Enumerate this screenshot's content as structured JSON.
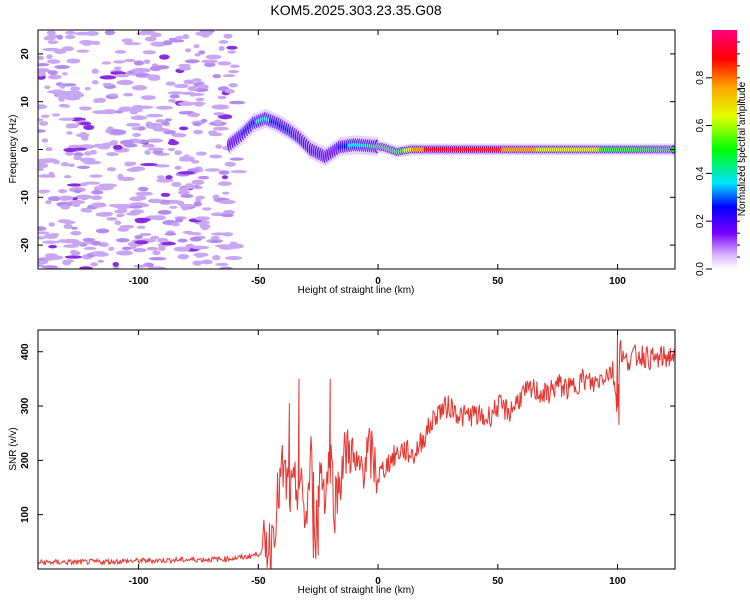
{
  "title": "KOM5.2025.303.23.35.G08",
  "colors": {
    "snr_line": "#e8332e",
    "frame": "#000000",
    "signal_violet": "#8a2be2",
    "noise_violet": "#c9a6f2"
  },
  "chart_data": [
    {
      "type": "heatmap",
      "xlabel": "Height of straight line (km)",
      "ylabel": "Frequency (Hz)",
      "xlim": [
        -142,
        124
      ],
      "ylim": [
        -25,
        25
      ],
      "xticks": [
        -100,
        -50,
        0,
        50,
        100
      ],
      "yticks": [
        -20,
        -10,
        0,
        10,
        20
      ],
      "grid": false,
      "colorbar": {
        "label": "Normalized spectral amplitude",
        "range": [
          0,
          1
        ],
        "ticks": [
          "0.0",
          "0.2",
          "0.4",
          "0.6",
          "0.8"
        ],
        "tick_values": [
          0.0,
          0.2,
          0.4,
          0.6,
          0.8
        ]
      },
      "noise_region": {
        "x_from": -142,
        "x_to": -58,
        "freq_from": -25,
        "freq_to": 25,
        "amplitude": 0.1
      },
      "ridge": [
        {
          "x": -62,
          "freq": 1.0,
          "amp": 0.18
        },
        {
          "x": -57,
          "freq": 3.0,
          "amp": 0.25
        },
        {
          "x": -52,
          "freq": 5.5,
          "amp": 0.35
        },
        {
          "x": -47,
          "freq": 6.5,
          "amp": 0.38
        },
        {
          "x": -42,
          "freq": 5.5,
          "amp": 0.32
        },
        {
          "x": -37,
          "freq": 4.0,
          "amp": 0.27
        },
        {
          "x": -33,
          "freq": 2.5,
          "amp": 0.22
        },
        {
          "x": -28,
          "freq": 0.0,
          "amp": 0.2
        },
        {
          "x": -22,
          "freq": -1.5,
          "amp": 0.2
        },
        {
          "x": -16,
          "freq": 0.5,
          "amp": 0.26
        },
        {
          "x": -10,
          "freq": 1.0,
          "amp": 0.4
        },
        {
          "x": -4,
          "freq": 0.8,
          "amp": 0.5
        },
        {
          "x": 2,
          "freq": 0.5,
          "amp": 0.62
        },
        {
          "x": 8,
          "freq": -0.5,
          "amp": 0.55
        },
        {
          "x": 14,
          "freq": 0.0,
          "amp": 0.75
        },
        {
          "x": 20,
          "freq": 0.0,
          "amp": 0.9
        },
        {
          "x": 30,
          "freq": 0.0,
          "amp": 1.0
        },
        {
          "x": 45,
          "freq": 0.0,
          "amp": 0.95
        },
        {
          "x": 60,
          "freq": 0.0,
          "amp": 0.8
        },
        {
          "x": 75,
          "freq": 0.0,
          "amp": 0.7
        },
        {
          "x": 90,
          "freq": 0.0,
          "amp": 0.65
        },
        {
          "x": 105,
          "freq": 0.0,
          "amp": 0.6
        },
        {
          "x": 124,
          "freq": 0.0,
          "amp": 0.58
        }
      ]
    },
    {
      "type": "line",
      "xlabel": "Height of straight line (km)",
      "ylabel": "SNR (v/v)",
      "xlim": [
        -142,
        124
      ],
      "ylim": [
        0,
        440
      ],
      "xticks": [
        -100,
        -50,
        0,
        50,
        100
      ],
      "yticks": [
        100,
        200,
        300,
        400
      ],
      "grid": false,
      "series": [
        {
          "name": "SNR",
          "x": [
            -142,
            -120,
            -100,
            -80,
            -65,
            -55,
            -50,
            -45,
            -40,
            -36,
            -33,
            -30,
            -28,
            -26,
            -24,
            -22,
            -20,
            -18,
            -15,
            -12,
            -9,
            -6,
            -3,
            0,
            5,
            10,
            15,
            20,
            25,
            30,
            35,
            40,
            45,
            50,
            55,
            60,
            65,
            70,
            75,
            80,
            85,
            90,
            95,
            98,
            100,
            101,
            103,
            106,
            110,
            115,
            120,
            124
          ],
          "values": [
            12,
            13,
            15,
            17,
            18,
            22,
            28,
            45,
            180,
            130,
            160,
            90,
            200,
            70,
            190,
            140,
            210,
            120,
            190,
            230,
            170,
            200,
            210,
            170,
            200,
            220,
            210,
            250,
            290,
            300,
            280,
            285,
            275,
            300,
            290,
            320,
            330,
            320,
            340,
            330,
            350,
            340,
            360,
            365,
            300,
            410,
            380,
            390,
            395,
            385,
            390,
            395
          ]
        }
      ],
      "spikes": [
        {
          "x": -42,
          "value": 170
        },
        {
          "x": -37,
          "value": 305
        },
        {
          "x": -33,
          "value": 350
        },
        {
          "x": -27,
          "value": 20
        },
        {
          "x": -25,
          "value": 25
        },
        {
          "x": -20,
          "value": 350
        },
        {
          "x": 100,
          "value": 440
        },
        {
          "x": 100.6,
          "value": 265
        }
      ]
    }
  ]
}
